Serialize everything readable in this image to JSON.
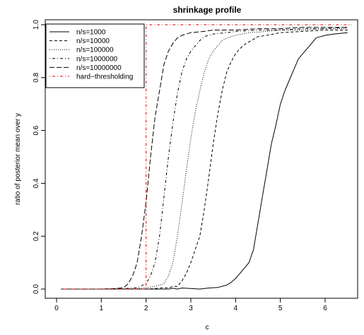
{
  "chart_data": {
    "type": "line",
    "title": "shrinkage profile",
    "xlabel": "c",
    "ylabel": "ratio of posterior mean over y",
    "xlim": [
      0,
      6.6
    ],
    "ylim": [
      0,
      1
    ],
    "xticks": [
      "0",
      "1",
      "2",
      "3",
      "4",
      "5",
      "6"
    ],
    "yticks": [
      "0.0",
      "0.2",
      "0.4",
      "0.6",
      "0.8",
      "1.0"
    ],
    "grid": false,
    "legend_position": "top-left",
    "series": [
      {
        "name": "n/s=1000",
        "style": "solid",
        "color": "#000000",
        "x": [
          0.1,
          0.5,
          1.0,
          1.5,
          2.0,
          2.3,
          2.5,
          2.6,
          2.7,
          2.8,
          3.0,
          3.2,
          3.4,
          3.6,
          3.8,
          3.9,
          4.0,
          4.1,
          4.2,
          4.3,
          4.4,
          4.5,
          4.6,
          4.7,
          4.8,
          4.9,
          5.0,
          5.1,
          5.2,
          5.3,
          5.4,
          5.5,
          5.6,
          5.7,
          5.8,
          5.9,
          6.0,
          6.2,
          6.5
        ],
        "y": [
          0.0,
          0.0,
          0.0,
          0.0,
          0.0,
          0.0,
          0.0,
          0.003,
          0.0,
          0.004,
          0.002,
          0.0,
          0.004,
          0.006,
          0.015,
          0.025,
          0.04,
          0.06,
          0.08,
          0.1,
          0.15,
          0.25,
          0.35,
          0.45,
          0.55,
          0.62,
          0.7,
          0.75,
          0.79,
          0.83,
          0.87,
          0.89,
          0.91,
          0.93,
          0.95,
          0.955,
          0.96,
          0.965,
          0.97
        ]
      },
      {
        "name": "n/s=10000",
        "style": "dashed",
        "color": "#000000",
        "x": [
          0.1,
          0.5,
          1.0,
          1.5,
          2.0,
          2.2,
          2.4,
          2.5,
          2.6,
          2.7,
          2.8,
          2.9,
          3.0,
          3.1,
          3.2,
          3.3,
          3.4,
          3.5,
          3.6,
          3.7,
          3.8,
          3.9,
          4.0,
          4.1,
          4.2,
          4.3,
          4.5,
          4.7,
          5.0,
          5.5,
          6.0,
          6.5
        ],
        "y": [
          0.0,
          0.0,
          0.0,
          0.0,
          0.0,
          0.002,
          0.005,
          0.004,
          0.01,
          0.01,
          0.03,
          0.06,
          0.1,
          0.15,
          0.2,
          0.3,
          0.42,
          0.55,
          0.66,
          0.75,
          0.82,
          0.86,
          0.89,
          0.91,
          0.925,
          0.935,
          0.955,
          0.96,
          0.97,
          0.975,
          0.98,
          0.98
        ]
      },
      {
        "name": "n/s=100000",
        "style": "dotted",
        "color": "#000000",
        "x": [
          0.1,
          0.5,
          1.0,
          1.5,
          1.8,
          2.0,
          2.2,
          2.4,
          2.5,
          2.6,
          2.7,
          2.8,
          2.9,
          3.0,
          3.1,
          3.2,
          3.3,
          3.4,
          3.5,
          3.6,
          3.7,
          3.8,
          4.0,
          4.3,
          4.7,
          5.0,
          5.5,
          6.0,
          6.5
        ],
        "y": [
          0.0,
          0.0,
          0.0,
          0.0,
          0.002,
          0.005,
          0.01,
          0.02,
          0.05,
          0.1,
          0.2,
          0.32,
          0.45,
          0.57,
          0.67,
          0.75,
          0.82,
          0.87,
          0.9,
          0.92,
          0.94,
          0.95,
          0.96,
          0.97,
          0.975,
          0.98,
          0.98,
          0.985,
          0.985
        ]
      },
      {
        "name": "n/s=1000000",
        "style": "dotdash",
        "color": "#000000",
        "x": [
          0.1,
          0.5,
          1.0,
          1.5,
          1.8,
          2.0,
          2.1,
          2.2,
          2.3,
          2.4,
          2.5,
          2.6,
          2.7,
          2.8,
          2.9,
          3.0,
          3.1,
          3.2,
          3.3,
          3.5,
          3.8,
          4.0,
          4.5,
          5.0,
          5.5,
          6.0,
          6.5
        ],
        "y": [
          0.0,
          0.0,
          0.0,
          0.002,
          0.005,
          0.02,
          0.05,
          0.1,
          0.2,
          0.35,
          0.5,
          0.63,
          0.74,
          0.82,
          0.87,
          0.9,
          0.92,
          0.94,
          0.955,
          0.965,
          0.97,
          0.975,
          0.98,
          0.98,
          0.985,
          0.985,
          0.99
        ]
      },
      {
        "name": "n/s=10000000",
        "style": "longdash",
        "color": "#000000",
        "x": [
          0.1,
          0.5,
          1.0,
          1.3,
          1.5,
          1.6,
          1.7,
          1.8,
          1.9,
          2.0,
          2.1,
          2.2,
          2.3,
          2.4,
          2.5,
          2.6,
          2.7,
          2.8,
          3.0,
          3.3,
          3.5,
          4.0,
          4.5,
          5.0,
          5.5,
          6.0,
          6.5
        ],
        "y": [
          0.0,
          0.0,
          0.0,
          0.002,
          0.005,
          0.02,
          0.05,
          0.1,
          0.2,
          0.33,
          0.5,
          0.65,
          0.75,
          0.85,
          0.9,
          0.93,
          0.95,
          0.96,
          0.97,
          0.975,
          0.98,
          0.98,
          0.985,
          0.985,
          0.99,
          0.99,
          0.99
        ]
      },
      {
        "name": "hard−thresholding",
        "style": "dotdash",
        "color": "#dd0000",
        "x": [
          0.1,
          2.0,
          2.0,
          6.6
        ],
        "y": [
          0.0,
          0.0,
          1.0,
          1.0
        ]
      }
    ]
  }
}
